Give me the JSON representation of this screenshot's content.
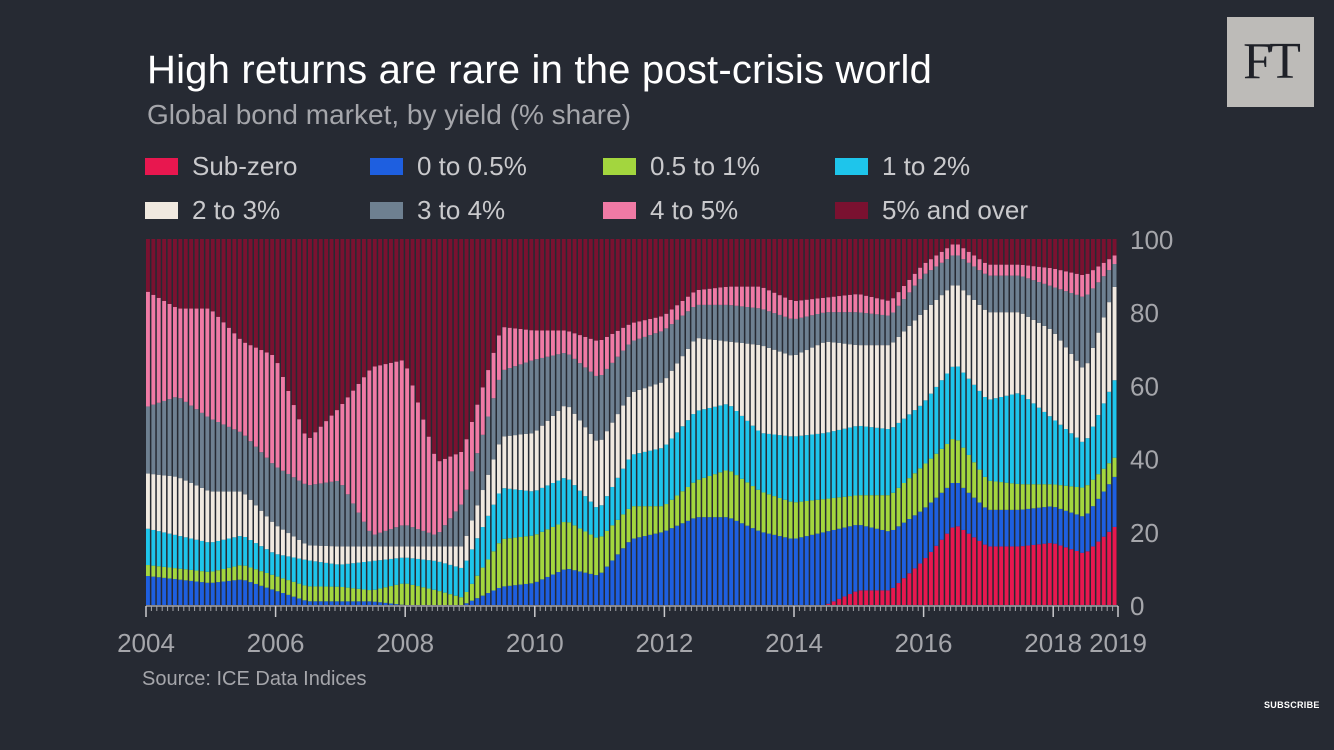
{
  "header": {
    "title": "High returns are rare in the post-crisis world",
    "subtitle": "Global bond market, by yield (% share)",
    "logo": "FT"
  },
  "footer": {
    "source": "Source: ICE Data Indices",
    "subscribe": "SUBSCRIBE"
  },
  "chart_data": {
    "type": "area",
    "style": "stacked bars, monthly",
    "x_start": 2004.0,
    "x_end": 2019.0,
    "x_ticks": [
      "2004",
      "2006",
      "2008",
      "2010",
      "2012",
      "2014",
      "2016",
      "2018",
      "2019"
    ],
    "y_ticks": [
      "0",
      "20",
      "40",
      "60",
      "80",
      "100"
    ],
    "ylim": [
      0,
      100
    ],
    "y_axis_side": "right",
    "legend_position": "top",
    "x": [
      2004.0,
      2004.5,
      2005.0,
      2005.5,
      2006.0,
      2006.5,
      2007.0,
      2007.5,
      2008.0,
      2008.5,
      2008.9,
      2009.5,
      2010.0,
      2010.5,
      2011.0,
      2011.5,
      2012.0,
      2012.5,
      2013.0,
      2013.5,
      2014.0,
      2014.5,
      2015.0,
      2015.5,
      2016.0,
      2016.5,
      2017.0,
      2017.5,
      2018.0,
      2018.5,
      2019.0
    ],
    "series": [
      {
        "name": "Sub-zero",
        "color": "#e8174f",
        "values": [
          0,
          0,
          0,
          0,
          0,
          0,
          0,
          0,
          0,
          0,
          0,
          0,
          0,
          0,
          0,
          0,
          0,
          0,
          0,
          0,
          0,
          0,
          4,
          4,
          12,
          22,
          16,
          16,
          17,
          14,
          22
        ]
      },
      {
        "name": "0 to 0.5%",
        "color": "#1e5fe0",
        "values": [
          8,
          7,
          6,
          7,
          4,
          1,
          1,
          1,
          0,
          0,
          0,
          5,
          6,
          10,
          8,
          18,
          20,
          24,
          24,
          20,
          18,
          20,
          18,
          16,
          14,
          12,
          10,
          10,
          10,
          10,
          14
        ]
      },
      {
        "name": "0.5 to 1%",
        "color": "#a3d63e",
        "values": [
          3,
          3,
          3,
          4,
          4,
          4,
          4,
          3,
          6,
          4,
          2,
          13,
          13,
          13,
          10,
          9,
          7,
          10,
          13,
          11,
          10,
          9,
          8,
          10,
          12,
          12,
          8,
          7,
          6,
          8,
          5
        ]
      },
      {
        "name": "1 to 2%",
        "color": "#1ec5eb",
        "values": [
          10,
          9,
          8,
          8,
          6,
          7,
          6,
          8,
          7,
          8,
          8,
          14,
          12,
          12,
          8,
          14,
          16,
          19,
          18,
          16,
          18,
          18,
          19,
          18,
          17,
          20,
          22,
          25,
          18,
          12,
          22
        ]
      },
      {
        "name": "2 to 3%",
        "color": "#f0e9e0",
        "values": [
          15,
          16,
          14,
          12,
          8,
          4,
          5,
          4,
          3,
          4,
          6,
          14,
          16,
          20,
          18,
          17,
          18,
          20,
          17,
          24,
          22,
          25,
          22,
          23,
          25,
          22,
          24,
          22,
          24,
          20,
          26
        ]
      },
      {
        "name": "3 to 4%",
        "color": "#6e8091",
        "values": [
          18,
          22,
          20,
          16,
          16,
          16,
          18,
          3,
          6,
          3,
          12,
          18,
          20,
          14,
          18,
          14,
          14,
          9,
          10,
          10,
          10,
          8,
          9,
          8,
          10,
          8,
          10,
          10,
          12,
          20,
          5
        ]
      },
      {
        "name": "4 to 5%",
        "color": "#f07aa5",
        "values": [
          32,
          24,
          30,
          25,
          30,
          12,
          20,
          46,
          45,
          20,
          14,
          12,
          8,
          6,
          10,
          5,
          4,
          4,
          5,
          6,
          5,
          4,
          5,
          4,
          3,
          3,
          3,
          3,
          5,
          6,
          2
        ]
      },
      {
        "name": "5% and over",
        "color": "#7a1130",
        "values": [
          14,
          19,
          19,
          28,
          32,
          54,
          46,
          35,
          33,
          61,
          58,
          24,
          25,
          25,
          28,
          23,
          21,
          14,
          13,
          13,
          17,
          16,
          15,
          17,
          7,
          1,
          7,
          7,
          8,
          10,
          4
        ]
      }
    ]
  }
}
